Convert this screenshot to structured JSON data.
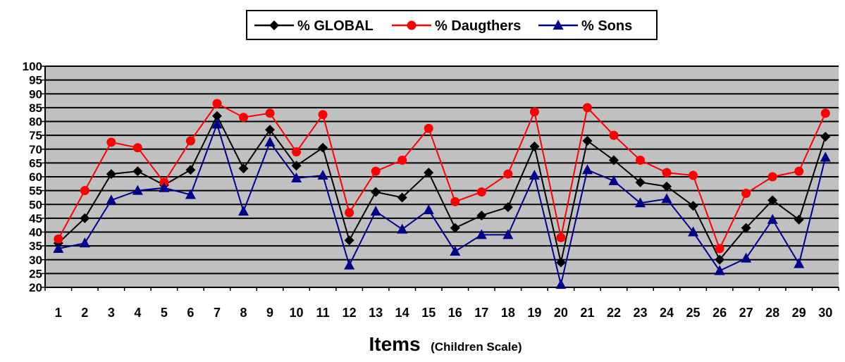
{
  "chart_data": {
    "type": "line",
    "title": "",
    "xlabel": "Items",
    "xlabel_note": "(Children Scale)",
    "ylabel": "",
    "ylim": [
      20,
      100
    ],
    "ytick_step": 5,
    "grid": true,
    "legend_position": "top-center",
    "background_color": "#c0c0c0",
    "categories": [
      "1",
      "2",
      "3",
      "4",
      "5",
      "6",
      "7",
      "8",
      "9",
      "10",
      "11",
      "12",
      "13",
      "14",
      "15",
      "16",
      "17",
      "18",
      "19",
      "20",
      "21",
      "22",
      "23",
      "24",
      "25",
      "26",
      "27",
      "28",
      "29",
      "30"
    ],
    "series": [
      {
        "name": "% GLOBAL",
        "color": "#000000",
        "marker": "diamond",
        "values": [
          36,
          45,
          61,
          62,
          57,
          62.5,
          82,
          63,
          77,
          64,
          70.5,
          37,
          54.5,
          52.5,
          61.5,
          41.5,
          46,
          49,
          71,
          29,
          73,
          66,
          58,
          56.5,
          49.5,
          30,
          41.5,
          51.5,
          44.5,
          74.5
        ]
      },
      {
        "name": "% Daugthers",
        "color": "#ff0000",
        "marker": "circle",
        "values": [
          37.5,
          55,
          72.5,
          70.5,
          58,
          73,
          86.5,
          81.5,
          83,
          69,
          82.5,
          47,
          62,
          66,
          77.5,
          51,
          54.5,
          61,
          83.5,
          38,
          85,
          75,
          66,
          61.5,
          60.5,
          34,
          54,
          60,
          62,
          83
        ]
      },
      {
        "name": "% Sons",
        "color": "#00008b",
        "marker": "triangle",
        "values": [
          34,
          36,
          51.5,
          55,
          56,
          53.5,
          79,
          47.5,
          72.5,
          59.5,
          60.5,
          28,
          47.5,
          41,
          48,
          33,
          39,
          39,
          60.5,
          21,
          62.5,
          58.5,
          50.5,
          52,
          40,
          26,
          30.5,
          44.5,
          28.5,
          67
        ]
      }
    ]
  }
}
